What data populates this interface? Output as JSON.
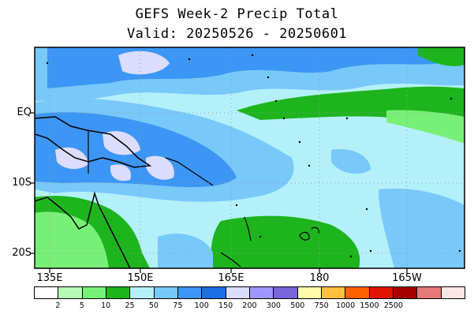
{
  "title": "GEFS Week-2 Precip Total",
  "subtitle": "Valid: 20250526 - 20250601",
  "lat_labels": [
    "EQ",
    "10S",
    "20S"
  ],
  "lon_labels": [
    "135E",
    "150E",
    "165E",
    "180",
    "165W"
  ],
  "colorbar": {
    "labels": [
      "2",
      "5",
      "10",
      "25",
      "50",
      "75",
      "100",
      "150",
      "200",
      "300",
      "500",
      "750",
      "1000",
      "1500",
      "2500"
    ],
    "colors": [
      "#ffffff",
      "#b4fab4",
      "#78f078",
      "#1eb41e",
      "#b4f0fa",
      "#78c8fa",
      "#3c96f5",
      "#1e6ee6",
      "#dcdcff",
      "#a096ff",
      "#7864dc",
      "#fffaaa",
      "#ffc03c",
      "#ff6000",
      "#e11400",
      "#a50000",
      "#e67878",
      "#ffe6e6"
    ]
  },
  "map": {
    "lon_range": [
      "130E",
      "158W"
    ],
    "lat_range": [
      "22S",
      "9N"
    ],
    "precip_colors": {
      "light_blue": "#b4f0fa",
      "mid_blue": "#78c8fa",
      "blue": "#3c96f5",
      "deep_blue": "#1e6ee6",
      "lavender": "#dcdcff",
      "green": "#1eb41e",
      "light_green": "#78f078"
    }
  }
}
